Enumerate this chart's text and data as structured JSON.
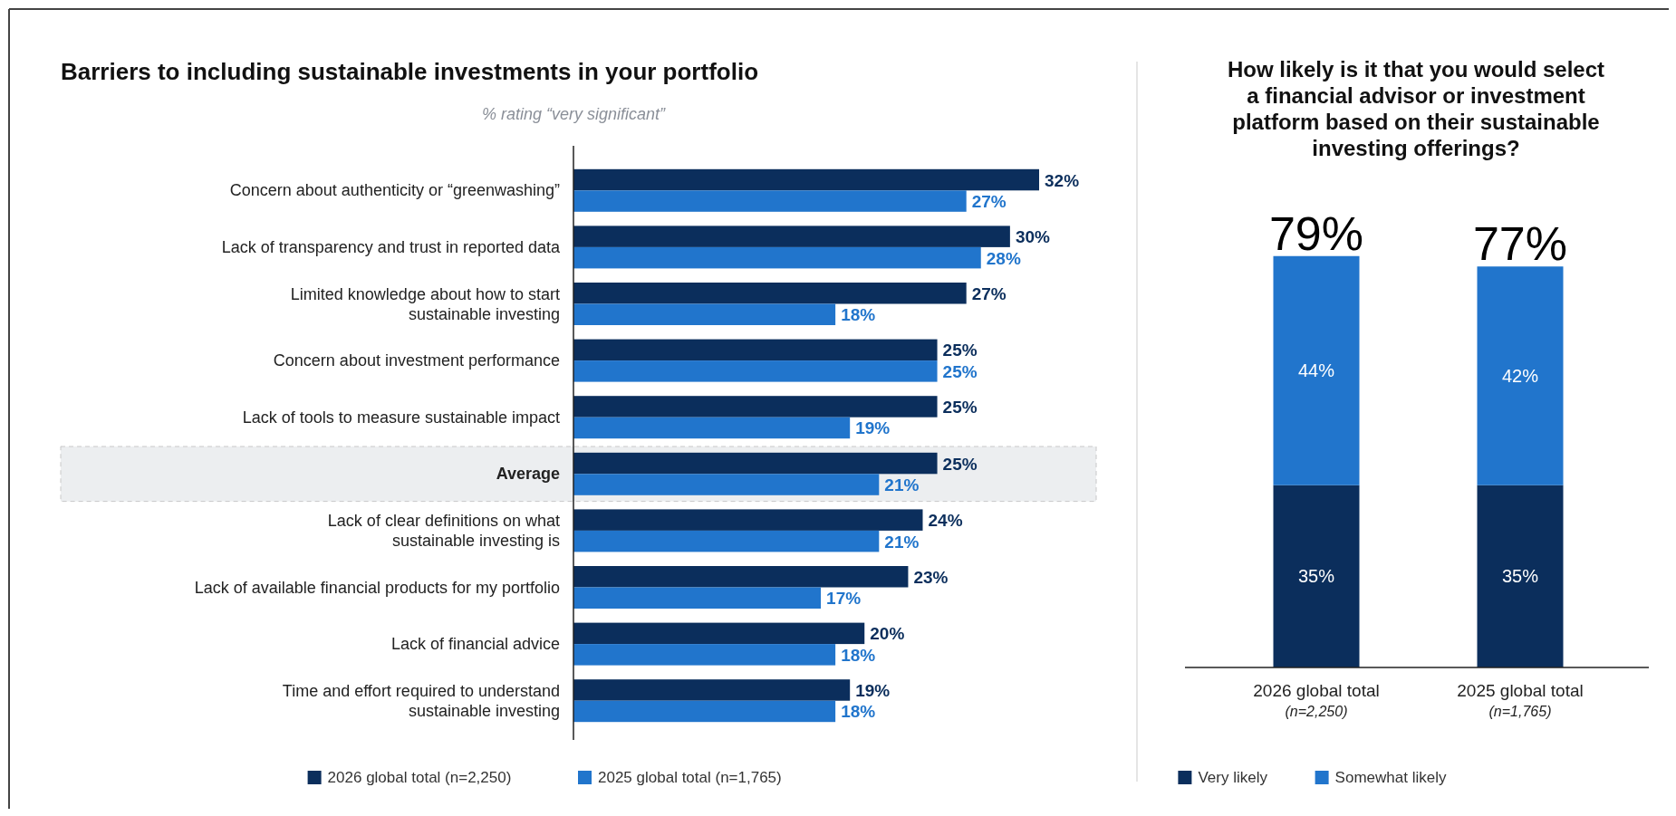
{
  "chart_data": [
    {
      "type": "bar",
      "orientation": "horizontal",
      "title": "Barriers to including sustainable investments in your portfolio",
      "subtitle": "% rating “very significant”",
      "categories": [
        "Concern about authenticity or “greenwashing”",
        "Lack of transparency and trust in reported data",
        "Limited knowledge about how to start\nsustainable investing",
        "Concern about investment performance",
        "Lack of tools to measure sustainable impact",
        "Average",
        "Lack of clear definitions on what\nsustainable investing is",
        "Lack of available financial products for my portfolio",
        "Lack of financial advice",
        "Time and effort required to understand\nsustainable investing"
      ],
      "series": [
        {
          "name": "2026 global total (n=2,250)",
          "color": "#0b2e5c",
          "values": [
            32,
            30,
            27,
            25,
            25,
            25,
            24,
            23,
            20,
            19
          ],
          "value_labels": [
            "32%",
            "30%",
            "27%",
            "25%",
            "25%",
            "25%",
            "24%",
            "23%",
            "20%",
            "19%"
          ]
        },
        {
          "name": "2025 global total (n=1,765)",
          "color": "#2175cc",
          "values": [
            27,
            28,
            18,
            25,
            19,
            21,
            21,
            17,
            18,
            18
          ],
          "value_labels": [
            "27%",
            "28%",
            "18%",
            "25%",
            "19%",
            "21%",
            "21%",
            "17%",
            "18%",
            "18%"
          ]
        }
      ],
      "bands": [
        {
          "axis": "y",
          "from": "Average",
          "to": "Average",
          "color": "#eceef0"
        }
      ],
      "legend": "bottom"
    },
    {
      "type": "bar",
      "stacked": true,
      "title": "How likely is it that you would select a financial advisor or investment platform based on their sustainable investing offerings?",
      "categories": [
        "2026 global total\n(n=2,250)",
        "2025 global total\n(n=1,765)"
      ],
      "series": [
        {
          "name": "Very likely",
          "color": "#0b2e5c",
          "values": [
            35,
            35
          ],
          "value_labels": [
            "35%",
            "35%"
          ]
        },
        {
          "name": "Somewhat likely",
          "color": "#2175cc",
          "values": [
            44,
            42
          ],
          "value_labels": [
            "44%",
            "42%"
          ]
        }
      ],
      "totals": [
        "79%",
        "77%"
      ],
      "legend": "bottom"
    }
  ]
}
